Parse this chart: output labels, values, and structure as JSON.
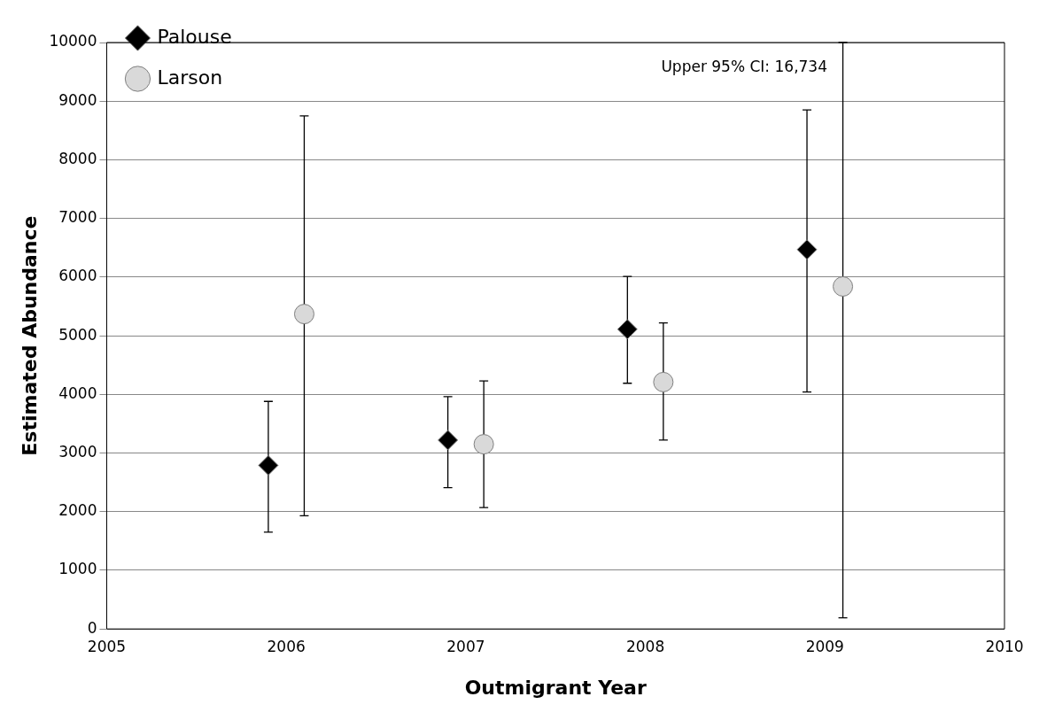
{
  "chart_data": {
    "type": "scatter",
    "xlabel": "Outmigrant Year",
    "ylabel": "Estimated Abundance",
    "xlim": [
      2005,
      2010
    ],
    "xticks": [
      2005,
      2006,
      2007,
      2008,
      2009,
      2010
    ],
    "ylim": [
      0,
      10000
    ],
    "yticks": [
      0,
      1000,
      2000,
      3000,
      4000,
      5000,
      6000,
      7000,
      8000,
      9000,
      10000
    ],
    "grid": "y",
    "legend": "top left",
    "annotations": [
      "Upper 95% CI: 16,734"
    ],
    "series": [
      {
        "name": "Palouse",
        "color": "#000000",
        "marker": "diamond",
        "x": [
          2005.9,
          2006.9,
          2007.9,
          2008.9
        ],
        "values": [
          2790,
          3220,
          5110,
          6470
        ],
        "errors": [
          [
            1650,
            3880
          ],
          [
            2410,
            3960
          ],
          [
            4190,
            6010
          ],
          [
            4040,
            8850
          ]
        ]
      },
      {
        "name": "Larson",
        "color": "#d9d9d9",
        "marker": "circle",
        "x": [
          2006.1,
          2007.1,
          2008.1,
          2009.1
        ],
        "values": [
          5370,
          3150,
          4210,
          5840
        ],
        "errors": [
          [
            1930,
            8750
          ],
          [
            2070,
            4230
          ],
          [
            3220,
            5220
          ],
          [
            190,
            10000
          ]
        ]
      }
    ]
  }
}
